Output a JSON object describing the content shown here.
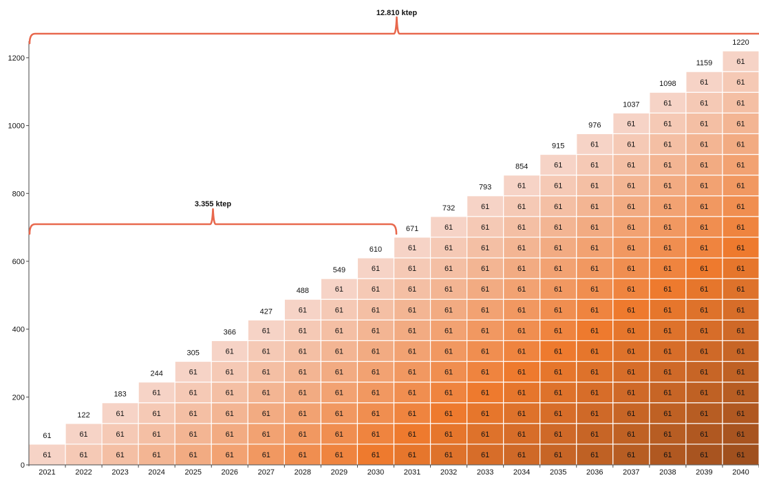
{
  "chart_data": {
    "type": "bar",
    "stacked": true,
    "categories": [
      "2021",
      "2022",
      "2023",
      "2024",
      "2025",
      "2026",
      "2027",
      "2028",
      "2029",
      "2030",
      "2031",
      "2032",
      "2033",
      "2034",
      "2035",
      "2036",
      "2037",
      "2038",
      "2039",
      "2040"
    ],
    "segment_value": 61,
    "segment_label": "61",
    "totals": [
      61,
      122,
      183,
      244,
      305,
      366,
      427,
      488,
      549,
      610,
      671,
      732,
      793,
      854,
      915,
      976,
      1037,
      1098,
      1159,
      1220
    ],
    "total_labels": [
      "61",
      "122",
      "183",
      "244",
      "305",
      "366",
      "427",
      "488",
      "549",
      "610",
      "671",
      "732",
      "793",
      "854",
      "915",
      "976",
      "1037",
      "1098",
      "1159",
      "1220"
    ],
    "y_ticks": [
      0,
      200,
      400,
      600,
      800,
      1000,
      1200
    ],
    "y_tick_labels": [
      "0",
      "200",
      "400",
      "600",
      "800",
      "1000",
      "1200"
    ],
    "ylim": [
      0,
      1290
    ],
    "grid": false,
    "title": "",
    "xlabel": "",
    "ylabel": "",
    "annotations": [
      {
        "label": "3.355 ktep",
        "from": "2021",
        "to": "2030"
      },
      {
        "label": "12.810 ktep",
        "from": "2021",
        "to": "2040"
      }
    ],
    "colors": {
      "light": "#f6d3c6",
      "orange": "#ee7a2e",
      "dark": "#a0501e",
      "brace": "#e8684d",
      "axis": "#444444",
      "text": "#111111"
    }
  }
}
